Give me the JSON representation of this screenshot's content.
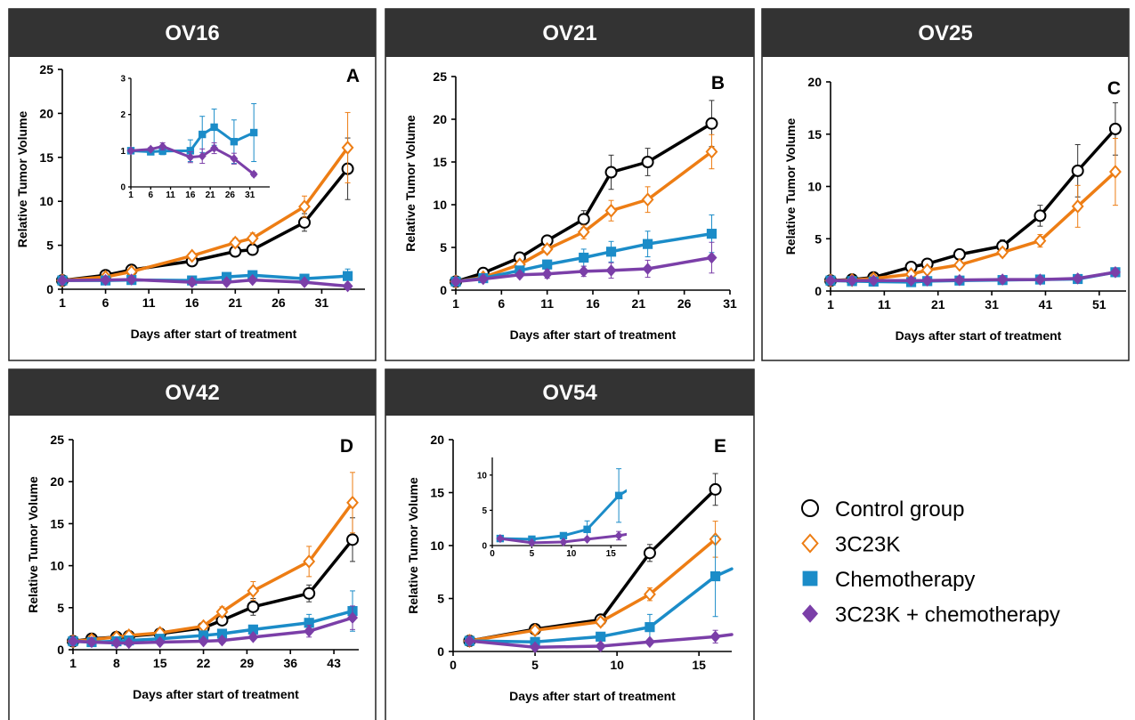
{
  "legend": {
    "items": [
      {
        "label": "Control group",
        "color": "#000000",
        "marker": "circle"
      },
      {
        "label": "3C23K",
        "color": "#ed7d14",
        "marker": "diamond-open"
      },
      {
        "label": "Chemotherapy",
        "color": "#1b8cc8",
        "marker": "square"
      },
      {
        "label": "3C23K + chemotherapy",
        "color": "#7b3fa8",
        "marker": "diamond"
      }
    ]
  },
  "chart_data": [
    {
      "type": "line",
      "panel": "OV16",
      "letter": "A",
      "xlabel": "Days after start of treatment",
      "ylabel": "Relative Tumor Volume",
      "xlim": [
        1,
        36
      ],
      "ylim": [
        0,
        25
      ],
      "xticks": [
        1,
        6,
        11,
        16,
        21,
        26,
        31
      ],
      "yticks": [
        0,
        5,
        10,
        15,
        20,
        25
      ],
      "series": [
        {
          "name": "Control group",
          "x": [
            1,
            6,
            9,
            16,
            21,
            23,
            29,
            34
          ],
          "y": [
            1,
            1.6,
            2.2,
            3.2,
            4.3,
            4.5,
            7.6,
            13.7
          ],
          "err": [
            0,
            0.2,
            0.3,
            0.3,
            0.4,
            0.5,
            1.0,
            3.5
          ]
        },
        {
          "name": "3C23K",
          "x": [
            1,
            6,
            9,
            16,
            21,
            23,
            29,
            34
          ],
          "y": [
            1,
            1.4,
            2.0,
            3.8,
            5.3,
            5.8,
            9.4,
            16.1
          ],
          "err": [
            0,
            0.2,
            0.3,
            0.4,
            0.5,
            0.6,
            1.2,
            4.0
          ]
        },
        {
          "name": "Chemotherapy",
          "x": [
            1,
            6,
            9,
            16,
            20,
            23,
            29,
            34
          ],
          "y": [
            1,
            1.0,
            1.05,
            1.0,
            1.4,
            1.6,
            1.2,
            1.5
          ],
          "err": [
            0,
            0.05,
            0.1,
            0.2,
            0.3,
            0.4,
            0.3,
            0.8
          ]
        },
        {
          "name": "3C23K + chemotherapy",
          "x": [
            1,
            6,
            9,
            16,
            20,
            23,
            29,
            34
          ],
          "y": [
            1,
            1.05,
            1.1,
            0.8,
            0.8,
            1.05,
            0.8,
            0.35
          ],
          "err": [
            0,
            0.05,
            0.1,
            0.1,
            0.1,
            0.2,
            0.1,
            0.05
          ]
        }
      ],
      "inset": {
        "xlim": [
          1,
          36
        ],
        "ylim": [
          0,
          3
        ],
        "xticks": [
          1,
          6,
          11,
          16,
          21,
          26,
          31
        ],
        "yticks": [
          0,
          1,
          2,
          3
        ],
        "series": [
          {
            "name": "Chemotherapy",
            "x": [
              1,
              6,
              9,
              16,
              19,
              22,
              27,
              32
            ],
            "y": [
              1,
              0.97,
              0.99,
              1.0,
              1.45,
              1.65,
              1.25,
              1.5
            ],
            "err": [
              0,
              0.05,
              0.1,
              0.3,
              0.5,
              0.5,
              0.6,
              0.8
            ]
          },
          {
            "name": "3C23K + chemotherapy",
            "x": [
              1,
              6,
              9,
              16,
              19,
              22,
              27,
              32
            ],
            "y": [
              1,
              1.04,
              1.12,
              0.82,
              0.85,
              1.07,
              0.78,
              0.35
            ],
            "err": [
              0,
              0.05,
              0.1,
              0.15,
              0.2,
              0.15,
              0.15,
              0.05
            ]
          }
        ]
      }
    },
    {
      "type": "line",
      "panel": "OV21",
      "letter": "B",
      "xlabel": "Days after start of treatment",
      "ylabel": "Relative Tumor Volume",
      "xlim": [
        1,
        31
      ],
      "ylim": [
        0,
        25
      ],
      "xticks": [
        1,
        6,
        11,
        16,
        21,
        26,
        31
      ],
      "yticks": [
        0,
        5,
        10,
        15,
        20,
        25
      ],
      "series": [
        {
          "name": "Control group",
          "x": [
            1,
            4,
            8,
            11,
            15,
            18,
            22,
            29
          ],
          "y": [
            1,
            2.0,
            3.8,
            5.8,
            8.3,
            13.8,
            15.0,
            19.5
          ],
          "err": [
            0,
            0.2,
            0.4,
            0.5,
            1.0,
            2.0,
            1.6,
            2.7
          ]
        },
        {
          "name": "3C23K",
          "x": [
            1,
            4,
            8,
            11,
            15,
            18,
            22,
            29
          ],
          "y": [
            1,
            1.5,
            3.0,
            4.8,
            6.8,
            9.3,
            10.6,
            16.2
          ],
          "err": [
            0,
            0.2,
            0.3,
            0.5,
            0.8,
            1.2,
            1.5,
            2.0
          ]
        },
        {
          "name": "Chemotherapy",
          "x": [
            1,
            4,
            8,
            11,
            15,
            18,
            22,
            29
          ],
          "y": [
            1,
            1.4,
            2.3,
            3.0,
            3.8,
            4.5,
            5.4,
            6.6
          ],
          "err": [
            0,
            0.2,
            0.3,
            0.5,
            1.0,
            1.2,
            1.5,
            2.2
          ]
        },
        {
          "name": "3C23K + chemotherapy",
          "x": [
            1,
            4,
            8,
            11,
            15,
            18,
            22,
            29
          ],
          "y": [
            1,
            1.3,
            1.8,
            1.9,
            2.2,
            2.3,
            2.5,
            3.8
          ],
          "err": [
            0,
            0.2,
            0.3,
            0.5,
            0.6,
            0.9,
            1.0,
            1.8
          ]
        }
      ]
    },
    {
      "type": "line",
      "panel": "OV25",
      "letter": "C",
      "xlabel": "Days after start of treatment",
      "ylabel": "Relative Tumor Volume",
      "xlim": [
        1,
        56
      ],
      "ylim": [
        0,
        20
      ],
      "xticks": [
        1,
        11,
        21,
        31,
        41,
        51
      ],
      "yticks": [
        0,
        5,
        10,
        15,
        20
      ],
      "series": [
        {
          "name": "Control group",
          "x": [
            1,
            5,
            9,
            16,
            19,
            25,
            33,
            40,
            47,
            54
          ],
          "y": [
            1,
            1.1,
            1.3,
            2.3,
            2.6,
            3.5,
            4.3,
            7.2,
            11.5,
            15.5
          ],
          "err": [
            0,
            0.1,
            0.1,
            0.2,
            0.2,
            0.3,
            0.6,
            1.0,
            2.5,
            2.5
          ]
        },
        {
          "name": "3C23K",
          "x": [
            1,
            5,
            9,
            16,
            19,
            25,
            33,
            40,
            47,
            54
          ],
          "y": [
            1,
            1.05,
            1.2,
            1.6,
            2.0,
            2.5,
            3.7,
            4.8,
            8.1,
            11.4
          ],
          "err": [
            0,
            0.1,
            0.1,
            0.2,
            0.2,
            0.3,
            0.4,
            0.6,
            2.0,
            3.2
          ]
        },
        {
          "name": "Chemotherapy",
          "x": [
            1,
            5,
            9,
            16,
            19,
            25,
            33,
            40,
            47,
            54
          ],
          "y": [
            1,
            0.95,
            0.9,
            0.85,
            0.95,
            1.0,
            1.05,
            1.1,
            1.15,
            1.8
          ],
          "err": [
            0,
            0.1,
            0.1,
            0.1,
            0.1,
            0.1,
            0.1,
            0.1,
            0.2,
            0.3
          ]
        },
        {
          "name": "3C23K + chemotherapy",
          "x": [
            1,
            5,
            9,
            16,
            19,
            25,
            33,
            40,
            47,
            54
          ],
          "y": [
            1,
            1.0,
            1.0,
            1.0,
            1.0,
            1.05,
            1.1,
            1.1,
            1.2,
            1.8
          ],
          "err": [
            0,
            0.1,
            0.1,
            0.1,
            0.1,
            0.1,
            0.1,
            0.1,
            0.2,
            0.3
          ]
        }
      ]
    },
    {
      "type": "line",
      "panel": "OV42",
      "letter": "D",
      "xlabel": "Days after start of treatment",
      "ylabel": "Relative Tumor Volume",
      "xlim": [
        1,
        47
      ],
      "ylim": [
        0,
        25
      ],
      "xticks": [
        1,
        8,
        15,
        22,
        29,
        36,
        43
      ],
      "yticks": [
        0,
        5,
        10,
        15,
        20,
        25
      ],
      "series": [
        {
          "name": "Control group",
          "x": [
            1,
            4,
            8,
            10,
            15,
            22,
            25,
            30,
            39,
            46
          ],
          "y": [
            1,
            1.3,
            1.5,
            1.6,
            1.9,
            2.6,
            3.5,
            5.1,
            6.7,
            13.1
          ],
          "err": [
            0,
            0.1,
            0.1,
            0.2,
            0.2,
            0.4,
            0.5,
            1.0,
            1.0,
            2.6
          ]
        },
        {
          "name": "3C23K",
          "x": [
            1,
            4,
            8,
            10,
            15,
            22,
            25,
            30,
            39,
            46
          ],
          "y": [
            1,
            1.2,
            1.5,
            1.7,
            2.0,
            2.8,
            4.5,
            7.0,
            10.5,
            17.5
          ],
          "err": [
            0,
            0.1,
            0.1,
            0.2,
            0.2,
            0.4,
            0.6,
            1.1,
            1.8,
            3.6
          ]
        },
        {
          "name": "Chemotherapy",
          "x": [
            1,
            4,
            8,
            10,
            15,
            22,
            25,
            30,
            39,
            46
          ],
          "y": [
            1,
            0.9,
            1.0,
            1.1,
            1.3,
            1.7,
            1.9,
            2.4,
            3.2,
            4.6
          ],
          "err": [
            0,
            0.1,
            0.1,
            0.1,
            0.2,
            0.3,
            0.4,
            0.5,
            1.0,
            2.4
          ]
        },
        {
          "name": "3C23K + chemotherapy",
          "x": [
            1,
            4,
            8,
            10,
            15,
            22,
            25,
            30,
            39,
            46
          ],
          "y": [
            1,
            0.9,
            0.8,
            0.8,
            0.9,
            1.0,
            1.1,
            1.5,
            2.2,
            3.8
          ],
          "err": [
            0,
            0.1,
            0.1,
            0.1,
            0.1,
            0.2,
            0.2,
            0.3,
            0.7,
            1.4
          ]
        }
      ]
    },
    {
      "type": "line",
      "panel": "OV54",
      "letter": "E",
      "xlabel": "Days after start of treatment",
      "ylabel": "Relative Tumor Volume",
      "xlim": [
        0,
        17
      ],
      "ylim": [
        0,
        20
      ],
      "xticks": [
        0,
        5,
        10,
        15
      ],
      "yticks": [
        0,
        5,
        10,
        15,
        20
      ],
      "series": [
        {
          "name": "Control group",
          "x": [
            1,
            5,
            9,
            12,
            16
          ],
          "y": [
            1,
            2.1,
            3.0,
            9.3,
            15.3
          ],
          "err": [
            0,
            0.2,
            0.4,
            0.8,
            1.5
          ]
        },
        {
          "name": "3C23K",
          "x": [
            1,
            5,
            9,
            12,
            16
          ],
          "y": [
            1,
            2.0,
            2.8,
            5.4,
            10.6
          ],
          "err": [
            0,
            0.2,
            0.4,
            0.6,
            1.7
          ]
        },
        {
          "name": "Chemotherapy",
          "x": [
            1,
            5,
            9,
            12,
            16,
            17
          ],
          "y": [
            1,
            0.9,
            1.4,
            2.3,
            7.1,
            7.8
          ],
          "err": [
            0,
            0.1,
            0.3,
            1.2,
            3.8,
            0
          ]
        },
        {
          "name": "3C23K + chemotherapy",
          "x": [
            1,
            5,
            9,
            12,
            16,
            17
          ],
          "y": [
            1,
            0.4,
            0.5,
            0.9,
            1.4,
            1.6
          ],
          "err": [
            0,
            0.1,
            0.1,
            0.2,
            0.6,
            0
          ]
        }
      ],
      "inset": {
        "xlim": [
          0,
          17
        ],
        "ylim": [
          0,
          12.5
        ],
        "xticks": [
          0,
          5,
          10,
          15
        ],
        "yticks": [
          0,
          5,
          10
        ],
        "series": [
          {
            "name": "Chemotherapy",
            "x": [
              1,
              5,
              9,
              12,
              16,
              17
            ],
            "y": [
              1,
              0.9,
              1.4,
              2.3,
              7.1,
              7.8
            ],
            "err": [
              0,
              0.1,
              0.3,
              1.2,
              3.8,
              0
            ]
          },
          {
            "name": "3C23K + chemotherapy",
            "x": [
              1,
              5,
              9,
              12,
              16,
              17
            ],
            "y": [
              1,
              0.4,
              0.5,
              0.9,
              1.4,
              1.6
            ],
            "err": [
              0,
              0.1,
              0.1,
              0.2,
              0.6,
              0
            ]
          }
        ]
      }
    }
  ]
}
